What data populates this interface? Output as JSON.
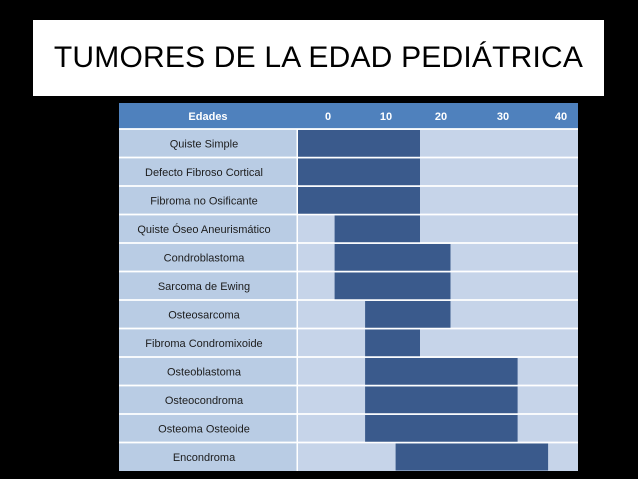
{
  "title": "TUMORES DE LA EDAD PEDIÁTRICA",
  "colors": {
    "background": "#000000",
    "header": "#4f81bd",
    "row_light": "#c6d4e9",
    "row_label": "#b9cce4",
    "bar": "#3a5a8c"
  },
  "chart_data": {
    "type": "bar",
    "orientation": "horizontal-range",
    "header_label": "Edades",
    "x_ticks": [
      "0",
      "10",
      "20",
      "30",
      "40"
    ],
    "xlim": [
      0,
      45
    ],
    "categories": [
      "Quiste Simple",
      "Defecto Fibroso Cortical",
      "Fibroma no Osificante",
      "Quiste Óseo Aneurismático",
      "Condroblastoma",
      "Sarcoma de Ewing",
      "Osteosarcoma",
      "Fibroma Condromixoide",
      "Osteoblastoma",
      "Osteocondroma",
      "Osteoma Osteoide",
      "Encondroma"
    ],
    "ranges": [
      [
        0,
        20
      ],
      [
        0,
        20
      ],
      [
        0,
        20
      ],
      [
        6,
        20
      ],
      [
        6,
        25
      ],
      [
        6,
        25
      ],
      [
        11,
        25
      ],
      [
        11,
        20
      ],
      [
        11,
        36
      ],
      [
        11,
        36
      ],
      [
        11,
        36
      ],
      [
        16,
        41
      ]
    ]
  }
}
